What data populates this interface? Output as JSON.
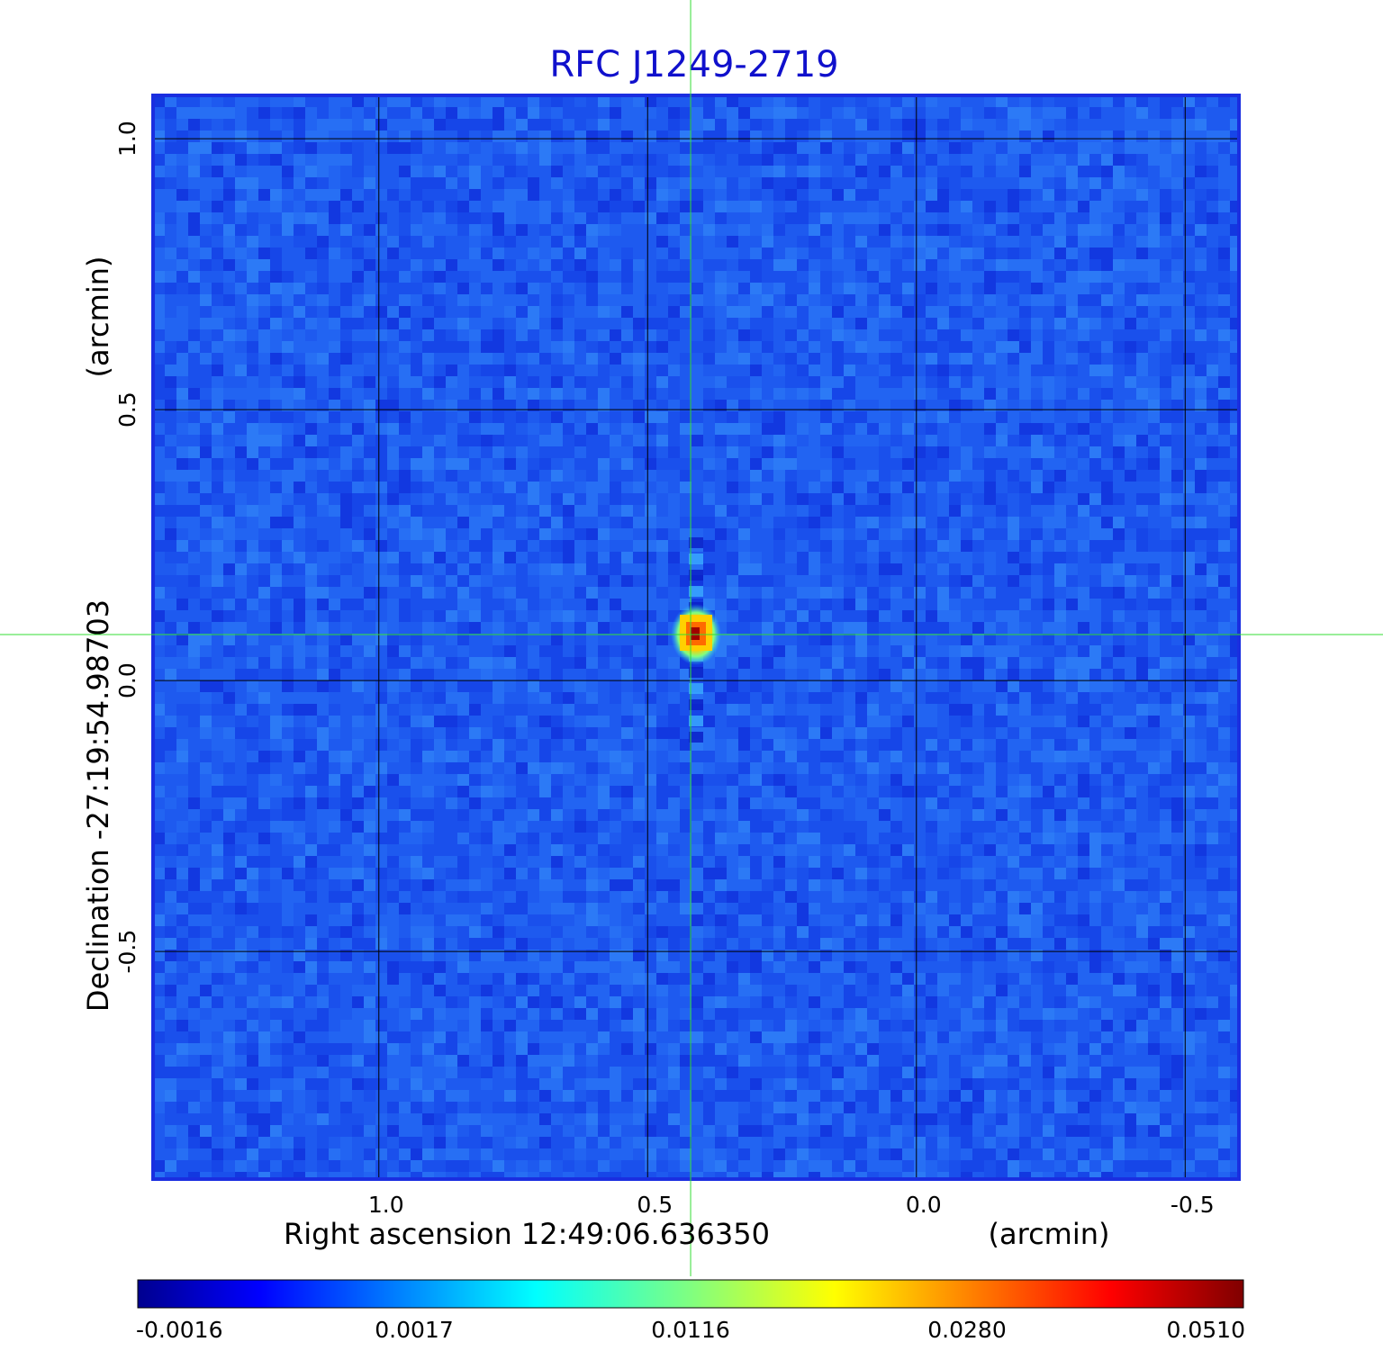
{
  "chart_data": {
    "type": "heatmap",
    "title": "RFC J1249-2719",
    "xlabel": "Right ascension  12:49:06.636350",
    "xunit": "(arcmin)",
    "ylabel": "Declination  -27:19:54.98703",
    "yunit": "(arcmin)",
    "x_ticks": [
      {
        "value": 1.0,
        "label": "1.0"
      },
      {
        "value": 0.5,
        "label": "0.5"
      },
      {
        "value": 0.0,
        "label": "0.0"
      },
      {
        "value": -0.5,
        "label": "-0.5"
      }
    ],
    "y_ticks": [
      {
        "value": 1.0,
        "label": "1.0"
      },
      {
        "value": 0.5,
        "label": "0.5"
      },
      {
        "value": 0.0,
        "label": "0.0"
      },
      {
        "value": -0.5,
        "label": "-0.5"
      }
    ],
    "xlim": [
      1.42,
      -0.6
    ],
    "ylim": [
      -0.92,
      1.08
    ],
    "x_direction": "decreasing to the right",
    "grid": true,
    "crosshair": {
      "x": 0.42,
      "y": 0.085,
      "color": "#33dd33"
    },
    "source_peak": {
      "x": 0.41,
      "y": 0.085,
      "value": 0.051
    },
    "background_level": -0.0005,
    "colorbar": {
      "colormap": "jet",
      "tick_labels": [
        "-0.0016",
        "0.0017",
        "0.0116",
        "0.0280",
        "0.0510"
      ],
      "min": -0.0016,
      "max": 0.051
    },
    "colors": {
      "title": "#1010cc",
      "frame": "#1a2ee0",
      "grid": "#000000",
      "background_map": "#1e5aef"
    }
  }
}
